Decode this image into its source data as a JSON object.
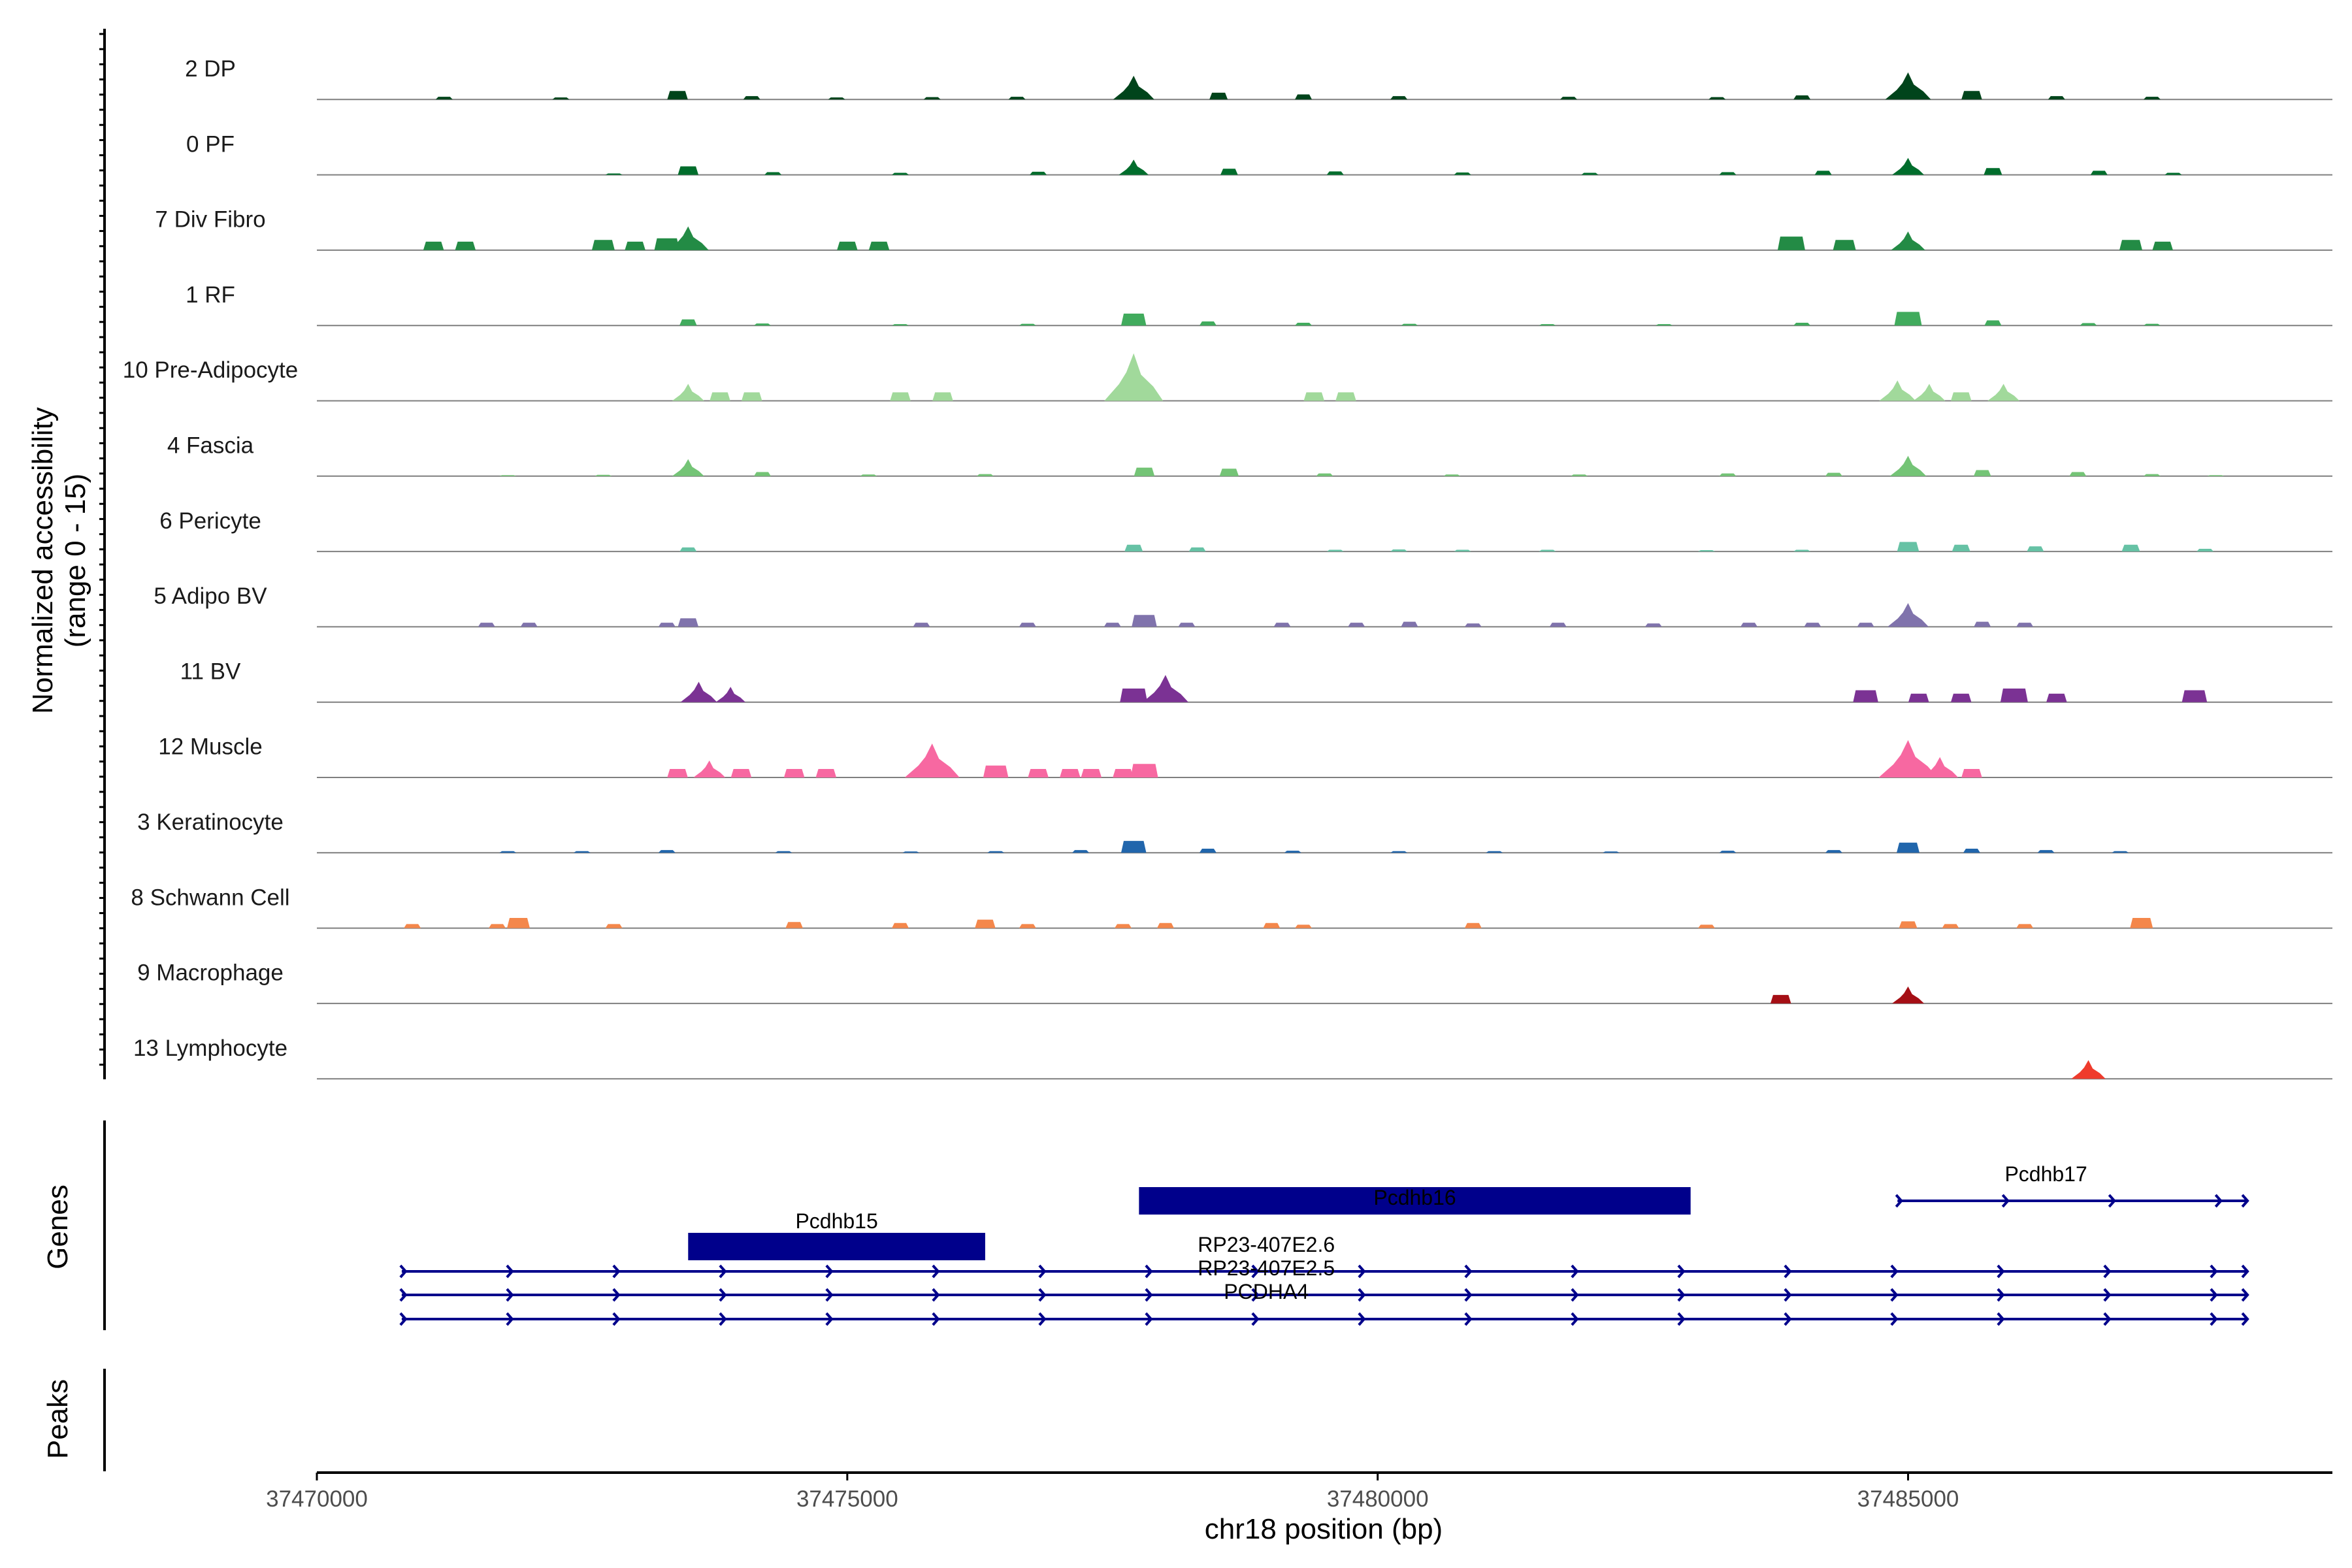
{
  "chart_data": {
    "type": "area",
    "title": "",
    "xlabel": "chr18 position (bp)",
    "ylabel": "Normalized accessibility\n(range 0 - 15)",
    "ylabel_lines": [
      "Normalized accessibility",
      "(range 0 - 15)"
    ],
    "xlim": [
      37470000,
      37489000
    ],
    "ylim": [
      0,
      15
    ],
    "x_ticks": [
      37470000,
      37475000,
      37480000,
      37485000
    ],
    "x_tick_labels": [
      "37470000",
      "37475000",
      "37480000",
      "37485000"
    ],
    "panel_labels": {
      "genes": "Genes",
      "peaks": "Peaks"
    },
    "tracks": [
      {
        "name": "2 DP",
        "color": "#00441b",
        "peaks": [
          [
            37471200,
            0.8
          ],
          [
            37472300,
            0.6
          ],
          [
            37473400,
            2.5
          ],
          [
            37474100,
            1
          ],
          [
            37474900,
            0.6
          ],
          [
            37475800,
            0.7
          ],
          [
            37476600,
            0.8
          ],
          [
            37477700,
            7
          ],
          [
            37478500,
            2
          ],
          [
            37479300,
            1.5
          ],
          [
            37480200,
            1
          ],
          [
            37481800,
            0.8
          ],
          [
            37483200,
            0.7
          ],
          [
            37484000,
            1.2
          ],
          [
            37485000,
            8
          ],
          [
            37485600,
            2.5
          ],
          [
            37486400,
            1
          ],
          [
            37487300,
            0.8
          ]
        ]
      },
      {
        "name": "0 PF",
        "color": "#006d2c",
        "peaks": [
          [
            37472800,
            0.4
          ],
          [
            37473500,
            2.5
          ],
          [
            37474300,
            0.8
          ],
          [
            37475500,
            0.6
          ],
          [
            37476800,
            0.9
          ],
          [
            37477700,
            4.5
          ],
          [
            37478600,
            1.8
          ],
          [
            37479600,
            1
          ],
          [
            37480800,
            0.7
          ],
          [
            37482000,
            0.6
          ],
          [
            37483300,
            0.8
          ],
          [
            37484200,
            1.2
          ],
          [
            37485000,
            5
          ],
          [
            37485800,
            2
          ],
          [
            37486800,
            1.2
          ],
          [
            37487500,
            0.6
          ]
        ]
      },
      {
        "name": "7 Div Fibro",
        "color": "#238b45",
        "peaks": [
          [
            37471100,
            2.5
          ],
          [
            37471400,
            2.5
          ],
          [
            37472700,
            3
          ],
          [
            37473000,
            2.5
          ],
          [
            37473300,
            3.5
          ],
          [
            37473500,
            7
          ],
          [
            37475000,
            2.5
          ],
          [
            37475300,
            2.5
          ],
          [
            37483900,
            4
          ],
          [
            37484400,
            3
          ],
          [
            37485000,
            5.5
          ],
          [
            37487100,
            3
          ],
          [
            37487400,
            2.5
          ]
        ]
      },
      {
        "name": "1 RF",
        "color": "#41ab5d",
        "peaks": [
          [
            37473500,
            1.8
          ],
          [
            37474200,
            0.6
          ],
          [
            37475500,
            0.4
          ],
          [
            37476700,
            0.5
          ],
          [
            37477700,
            3.5
          ],
          [
            37478400,
            1.2
          ],
          [
            37479300,
            0.8
          ],
          [
            37480300,
            0.5
          ],
          [
            37481600,
            0.4
          ],
          [
            37482700,
            0.4
          ],
          [
            37484000,
            0.8
          ],
          [
            37485000,
            4
          ],
          [
            37485800,
            1.5
          ],
          [
            37486700,
            0.7
          ],
          [
            37487300,
            0.5
          ]
        ]
      },
      {
        "name": "10 Pre-Adipocyte",
        "color": "#a1d99b",
        "peaks": [
          [
            37473500,
            5
          ],
          [
            37473800,
            2.5
          ],
          [
            37474100,
            2.5
          ],
          [
            37475500,
            2.5
          ],
          [
            37475900,
            2.5
          ],
          [
            37477700,
            14
          ],
          [
            37479400,
            2.5
          ],
          [
            37479700,
            2.5
          ],
          [
            37484900,
            6
          ],
          [
            37485200,
            5
          ],
          [
            37485500,
            2.5
          ],
          [
            37485900,
            5
          ]
        ]
      },
      {
        "name": "4 Fascia",
        "color": "#74c476",
        "peaks": [
          [
            37471800,
            0.3
          ],
          [
            37472700,
            0.4
          ],
          [
            37473500,
            5
          ],
          [
            37474200,
            1.2
          ],
          [
            37475200,
            0.5
          ],
          [
            37476300,
            0.6
          ],
          [
            37477800,
            2.5
          ],
          [
            37478600,
            2.2
          ],
          [
            37479500,
            0.8
          ],
          [
            37480700,
            0.5
          ],
          [
            37481900,
            0.5
          ],
          [
            37483300,
            0.8
          ],
          [
            37484300,
            1
          ],
          [
            37485000,
            6
          ],
          [
            37485700,
            1.8
          ],
          [
            37486600,
            1.2
          ],
          [
            37487300,
            0.6
          ],
          [
            37487900,
            0.3
          ]
        ]
      },
      {
        "name": "6 Pericyte",
        "color": "#66c2a5",
        "peaks": [
          [
            37473500,
            1.2
          ],
          [
            37477700,
            2
          ],
          [
            37478300,
            1.2
          ],
          [
            37479600,
            0.5
          ],
          [
            37480200,
            0.6
          ],
          [
            37480800,
            0.5
          ],
          [
            37481600,
            0.5
          ],
          [
            37483100,
            0.4
          ],
          [
            37484000,
            0.5
          ],
          [
            37485000,
            2.8
          ],
          [
            37485500,
            2
          ],
          [
            37486200,
            1.5
          ],
          [
            37487100,
            2
          ],
          [
            37487800,
            0.8
          ]
        ]
      },
      {
        "name": "5 Adipo BV",
        "color": "#8073ac",
        "peaks": [
          [
            37471600,
            1.2
          ],
          [
            37472000,
            1.2
          ],
          [
            37473300,
            1.2
          ],
          [
            37473500,
            2.5
          ],
          [
            37475700,
            1.2
          ],
          [
            37476700,
            1.2
          ],
          [
            37477500,
            1.2
          ],
          [
            37477800,
            3.5
          ],
          [
            37478200,
            1.2
          ],
          [
            37479100,
            1.2
          ],
          [
            37479800,
            1.2
          ],
          [
            37480300,
            1.5
          ],
          [
            37480900,
            1
          ],
          [
            37481700,
            1.2
          ],
          [
            37482600,
            1
          ],
          [
            37483500,
            1.2
          ],
          [
            37484100,
            1.2
          ],
          [
            37484600,
            1.2
          ],
          [
            37485000,
            7
          ],
          [
            37485700,
            1.5
          ],
          [
            37486100,
            1.2
          ]
        ]
      },
      {
        "name": "11 BV",
        "color": "#7b3294",
        "peaks": [
          [
            37473600,
            6
          ],
          [
            37473900,
            4.5
          ],
          [
            37477700,
            4
          ],
          [
            37478000,
            8
          ],
          [
            37484600,
            3.5
          ],
          [
            37485100,
            2.5
          ],
          [
            37485500,
            2.5
          ],
          [
            37486000,
            4
          ],
          [
            37486400,
            2.5
          ],
          [
            37487700,
            3.5
          ]
        ]
      },
      {
        "name": "12 Muscle",
        "color": "#f768a1",
        "peaks": [
          [
            37473400,
            2.5
          ],
          [
            37473700,
            5
          ],
          [
            37474000,
            2.5
          ],
          [
            37474500,
            2.5
          ],
          [
            37474800,
            2.5
          ],
          [
            37475800,
            10
          ],
          [
            37476400,
            3.5
          ],
          [
            37476800,
            2.5
          ],
          [
            37477100,
            2.5
          ],
          [
            37477300,
            2.5
          ],
          [
            37477600,
            2.5
          ],
          [
            37477800,
            4
          ],
          [
            37485000,
            11
          ],
          [
            37485300,
            6
          ],
          [
            37485600,
            2.5
          ]
        ]
      },
      {
        "name": "3 Keratinocyte",
        "color": "#2166ac",
        "peaks": [
          [
            37471800,
            0.5
          ],
          [
            37472500,
            0.5
          ],
          [
            37473300,
            0.8
          ],
          [
            37474400,
            0.5
          ],
          [
            37475600,
            0.4
          ],
          [
            37476400,
            0.5
          ],
          [
            37477200,
            0.8
          ],
          [
            37477700,
            3.5
          ],
          [
            37478400,
            1.2
          ],
          [
            37479200,
            0.6
          ],
          [
            37480200,
            0.5
          ],
          [
            37481100,
            0.5
          ],
          [
            37482200,
            0.4
          ],
          [
            37483300,
            0.6
          ],
          [
            37484300,
            0.8
          ],
          [
            37485000,
            3
          ],
          [
            37485600,
            1.2
          ],
          [
            37486300,
            0.8
          ],
          [
            37487000,
            0.5
          ]
        ]
      },
      {
        "name": "8 Schwann Cell",
        "color": "#f4874b",
        "peaks": [
          [
            37470900,
            1.2
          ],
          [
            37471700,
            1.2
          ],
          [
            37471900,
            3
          ],
          [
            37472800,
            1.2
          ],
          [
            37474500,
            1.8
          ],
          [
            37475500,
            1.5
          ],
          [
            37476300,
            2.5
          ],
          [
            37476700,
            1.2
          ],
          [
            37477600,
            1.2
          ],
          [
            37478000,
            1.5
          ],
          [
            37479000,
            1.5
          ],
          [
            37479300,
            1
          ],
          [
            37480900,
            1.5
          ],
          [
            37483100,
            1
          ],
          [
            37485000,
            2
          ],
          [
            37485400,
            1.2
          ],
          [
            37486100,
            1.2
          ],
          [
            37487200,
            3
          ]
        ]
      },
      {
        "name": "9 Macrophage",
        "color": "#a50f15",
        "peaks": [
          [
            37483800,
            2.5
          ],
          [
            37485000,
            5
          ]
        ]
      },
      {
        "name": "13 Lymphocyte",
        "color": "#ef3b2c",
        "peaks": [
          [
            37486700,
            5.5
          ]
        ]
      }
    ],
    "genes": [
      {
        "name": "Pcdhb15",
        "start": 37473500,
        "end": 37476300,
        "type": "box",
        "row": 1
      },
      {
        "name": "Pcdhb16",
        "start": 37477750,
        "end": 37482950,
        "type": "box",
        "row": 0
      },
      {
        "name": "Pcdhb17",
        "start": 37484900,
        "end": 37488200,
        "type": "line",
        "row": 0
      },
      {
        "name": "RP23-407E2.6",
        "start": 37470800,
        "end": 37488200,
        "type": "line",
        "row": 2
      },
      {
        "name": "RP23-407E2.5",
        "start": 37470800,
        "end": 37488200,
        "type": "line",
        "row": 3
      },
      {
        "name": "PCDHA4",
        "start": 37470800,
        "end": 37488200,
        "type": "line",
        "row": 4
      }
    ]
  }
}
